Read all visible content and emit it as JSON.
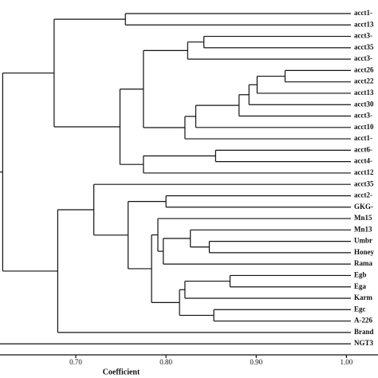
{
  "chart_data": {
    "type": "dendrogram",
    "x_label": "Coefficient",
    "leaves": [
      "acct1-",
      "acct13",
      "acct3-",
      "acct35",
      "acct3-",
      "acct26",
      "acct22",
      "acct13",
      "acct30",
      "acct3-",
      "acct10",
      "acct1-",
      "acct6-",
      "acct4-",
      "acct12",
      "acct35",
      "acct2-",
      "GKG-",
      "Mn15",
      "Mn13",
      "Umbr",
      "Honey",
      "Rama",
      "Egb",
      "Ega",
      "Karm",
      "Egc",
      "A-226",
      "Brand",
      "NGT3"
    ],
    "merges": [
      {
        "children": [
          0,
          1
        ],
        "height": 0.755
      },
      {
        "children": [
          2,
          3
        ],
        "height": 0.842
      },
      {
        "children": [
          31,
          4
        ],
        "height": 0.824
      },
      {
        "children": [
          5,
          6
        ],
        "height": 0.932
      },
      {
        "children": [
          33,
          7
        ],
        "height": 0.901
      },
      {
        "children": [
          34,
          8
        ],
        "height": 0.892
      },
      {
        "children": [
          35,
          9
        ],
        "height": 0.881
      },
      {
        "children": [
          36,
          10
        ],
        "height": 0.833
      },
      {
        "children": [
          37,
          11
        ],
        "height": 0.821
      },
      {
        "children": [
          32,
          38
        ],
        "height": 0.775
      },
      {
        "children": [
          12,
          13
        ],
        "height": 0.855
      },
      {
        "children": [
          40,
          14
        ],
        "height": 0.775
      },
      {
        "children": [
          39,
          41
        ],
        "height": 0.749
      },
      {
        "children": [
          30,
          42
        ],
        "height": 0.676
      },
      {
        "children": [
          20,
          21
        ],
        "height": 0.848
      },
      {
        "children": [
          19,
          44
        ],
        "height": 0.827
      },
      {
        "children": [
          45,
          22
        ],
        "height": 0.797
      },
      {
        "children": [
          18,
          46
        ],
        "height": 0.791
      },
      {
        "children": [
          23,
          24
        ],
        "height": 0.871
      },
      {
        "children": [
          48,
          25
        ],
        "height": 0.821
      },
      {
        "children": [
          26,
          27
        ],
        "height": 0.853
      },
      {
        "children": [
          49,
          50
        ],
        "height": 0.815
      },
      {
        "children": [
          47,
          51
        ],
        "height": 0.784
      },
      {
        "children": [
          16,
          17
        ],
        "height": 0.8
      },
      {
        "children": [
          53,
          52
        ],
        "height": 0.758
      },
      {
        "children": [
          15,
          54
        ],
        "height": 0.72
      },
      {
        "children": [
          55,
          28
        ],
        "height": 0.68
      },
      {
        "children": [
          43,
          56
        ],
        "height": 0.619
      },
      {
        "children": [
          57,
          29
        ],
        "height": 0.61
      }
    ],
    "xlim": [
      0.616,
      1.035
    ],
    "xticks": [
      {
        "value": 0.7,
        "label": "0.70"
      },
      {
        "value": 0.8,
        "label": "0.80"
      },
      {
        "value": 0.9,
        "label": "0.90"
      },
      {
        "value": 1.0,
        "label": "1.00"
      }
    ]
  }
}
